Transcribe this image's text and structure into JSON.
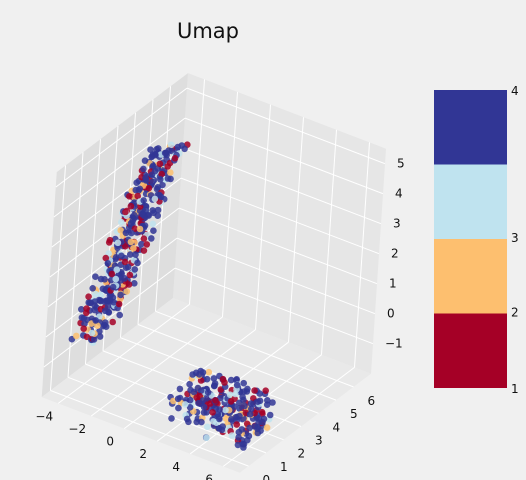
{
  "chart_data": {
    "type": "scatter",
    "projection": "3d",
    "title": "Umap",
    "xlabel": "",
    "ylabel": "",
    "zlabel": "",
    "x_ticks": [
      "−4",
      "−2",
      "0",
      "2",
      "4",
      "6"
    ],
    "y_ticks": [
      "0",
      "1",
      "2",
      "3",
      "4",
      "5",
      "6"
    ],
    "z_ticks": [
      "−1",
      "0",
      "1",
      "2",
      "3",
      "4",
      "5"
    ],
    "xlim": [
      -5,
      7
    ],
    "ylim": [
      -0.5,
      7
    ],
    "zlim": [
      -2,
      5.5
    ],
    "grid": true,
    "colorbar": {
      "ticks": [
        "1",
        "2",
        "3",
        "4"
      ],
      "categories": [
        1,
        2,
        3,
        4
      ],
      "colors": [
        "#a50026",
        "#fdbf6f",
        "#bfe3ef",
        "#313695"
      ]
    },
    "clusters": [
      {
        "name": "upper",
        "x_range": [
          -4,
          -1.5
        ],
        "y_range": [
          1,
          4
        ],
        "z_range": [
          -0.5,
          5
        ],
        "approx_points": 420
      },
      {
        "name": "lower",
        "x_range": [
          1.5,
          6
        ],
        "y_range": [
          0.5,
          2.5
        ],
        "z_range": [
          -2,
          -0.8
        ],
        "approx_points": 260
      }
    ],
    "category_mix": {
      "1": 0.15,
      "2": 0.12,
      "3": 0.1,
      "4": 0.63
    }
  }
}
